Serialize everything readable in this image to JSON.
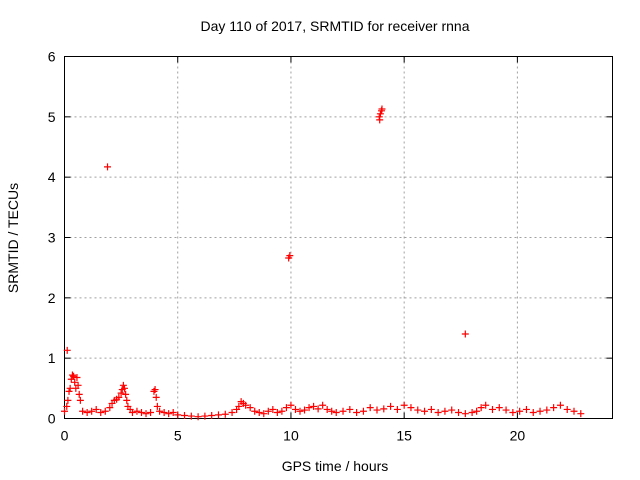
{
  "chart_data": {
    "type": "scatter",
    "title": "Day 110 of 2017, SRMTID for receiver rnna",
    "xlabel": "GPS time / hours",
    "ylabel": "SRMTID / TECUs",
    "xlim": [
      0,
      24.2
    ],
    "ylim": [
      0,
      6
    ],
    "xticks": [
      "0",
      "5",
      "10",
      "15",
      "20"
    ],
    "xtick_values": [
      0,
      5,
      10,
      15,
      20
    ],
    "yticks": [
      "0",
      "1",
      "2",
      "3",
      "4",
      "5",
      "6"
    ],
    "ytick_values": [
      0,
      1,
      2,
      3,
      4,
      5,
      6
    ],
    "grid": true,
    "marker": "+",
    "color": "#ff0000",
    "series": [
      {
        "name": "SRMTID",
        "x": [
          0.0,
          0.1,
          0.15,
          0.2,
          0.25,
          0.3,
          0.35,
          0.4,
          0.45,
          0.5,
          0.55,
          0.6,
          0.65,
          0.7,
          0.8,
          1.0,
          1.2,
          1.4,
          1.6,
          1.8,
          2.0,
          2.1,
          2.2,
          2.3,
          2.4,
          2.5,
          2.55,
          2.6,
          2.65,
          2.7,
          2.75,
          2.8,
          2.9,
          3.0,
          3.2,
          3.4,
          3.6,
          3.8,
          3.95,
          4.0,
          4.05,
          4.1,
          4.2,
          4.4,
          4.6,
          4.8,
          5.0,
          5.3,
          5.6,
          5.9,
          6.2,
          6.5,
          6.8,
          7.1,
          7.4,
          7.6,
          7.7,
          7.8,
          7.9,
          8.0,
          8.2,
          8.4,
          8.6,
          8.8,
          9.0,
          9.2,
          9.4,
          9.6,
          9.8,
          10.0,
          10.2,
          10.4,
          10.6,
          10.8,
          11.0,
          11.2,
          11.4,
          11.6,
          11.8,
          12.0,
          12.3,
          12.6,
          12.9,
          13.2,
          13.5,
          13.8,
          14.1,
          14.4,
          14.7,
          15.0,
          15.3,
          15.6,
          15.9,
          16.2,
          16.5,
          16.8,
          17.1,
          17.4,
          17.7,
          18.0,
          18.2,
          18.4,
          18.6,
          18.9,
          19.2,
          19.5,
          19.8,
          20.1,
          20.4,
          20.7,
          21.0,
          21.3,
          21.6,
          21.9,
          22.2,
          22.5,
          22.8,
          0.12,
          1.9,
          9.9,
          9.95,
          13.9,
          13.95,
          14.0,
          13.92,
          14.02,
          17.7
        ],
        "y": [
          0.12,
          0.2,
          0.3,
          0.45,
          0.5,
          0.65,
          0.72,
          0.7,
          0.6,
          0.5,
          0.68,
          0.55,
          0.4,
          0.3,
          0.12,
          0.1,
          0.12,
          0.15,
          0.1,
          0.12,
          0.18,
          0.25,
          0.3,
          0.32,
          0.35,
          0.42,
          0.48,
          0.55,
          0.5,
          0.4,
          0.3,
          0.2,
          0.15,
          0.1,
          0.12,
          0.1,
          0.08,
          0.1,
          0.45,
          0.48,
          0.35,
          0.2,
          0.12,
          0.1,
          0.08,
          0.1,
          0.06,
          0.05,
          0.04,
          0.03,
          0.04,
          0.05,
          0.06,
          0.07,
          0.1,
          0.15,
          0.2,
          0.28,
          0.25,
          0.22,
          0.18,
          0.12,
          0.1,
          0.08,
          0.12,
          0.15,
          0.1,
          0.12,
          0.18,
          0.22,
          0.15,
          0.12,
          0.14,
          0.18,
          0.2,
          0.16,
          0.22,
          0.15,
          0.12,
          0.1,
          0.12,
          0.15,
          0.1,
          0.12,
          0.18,
          0.14,
          0.16,
          0.2,
          0.15,
          0.22,
          0.18,
          0.14,
          0.12,
          0.15,
          0.1,
          0.12,
          0.14,
          0.1,
          0.08,
          0.1,
          0.12,
          0.18,
          0.22,
          0.15,
          0.18,
          0.14,
          0.1,
          0.12,
          0.15,
          0.1,
          0.12,
          0.14,
          0.18,
          0.22,
          0.15,
          0.12,
          0.08,
          1.13,
          4.17,
          2.66,
          2.7,
          5.0,
          5.05,
          5.1,
          4.95,
          5.13,
          1.4
        ]
      }
    ]
  }
}
